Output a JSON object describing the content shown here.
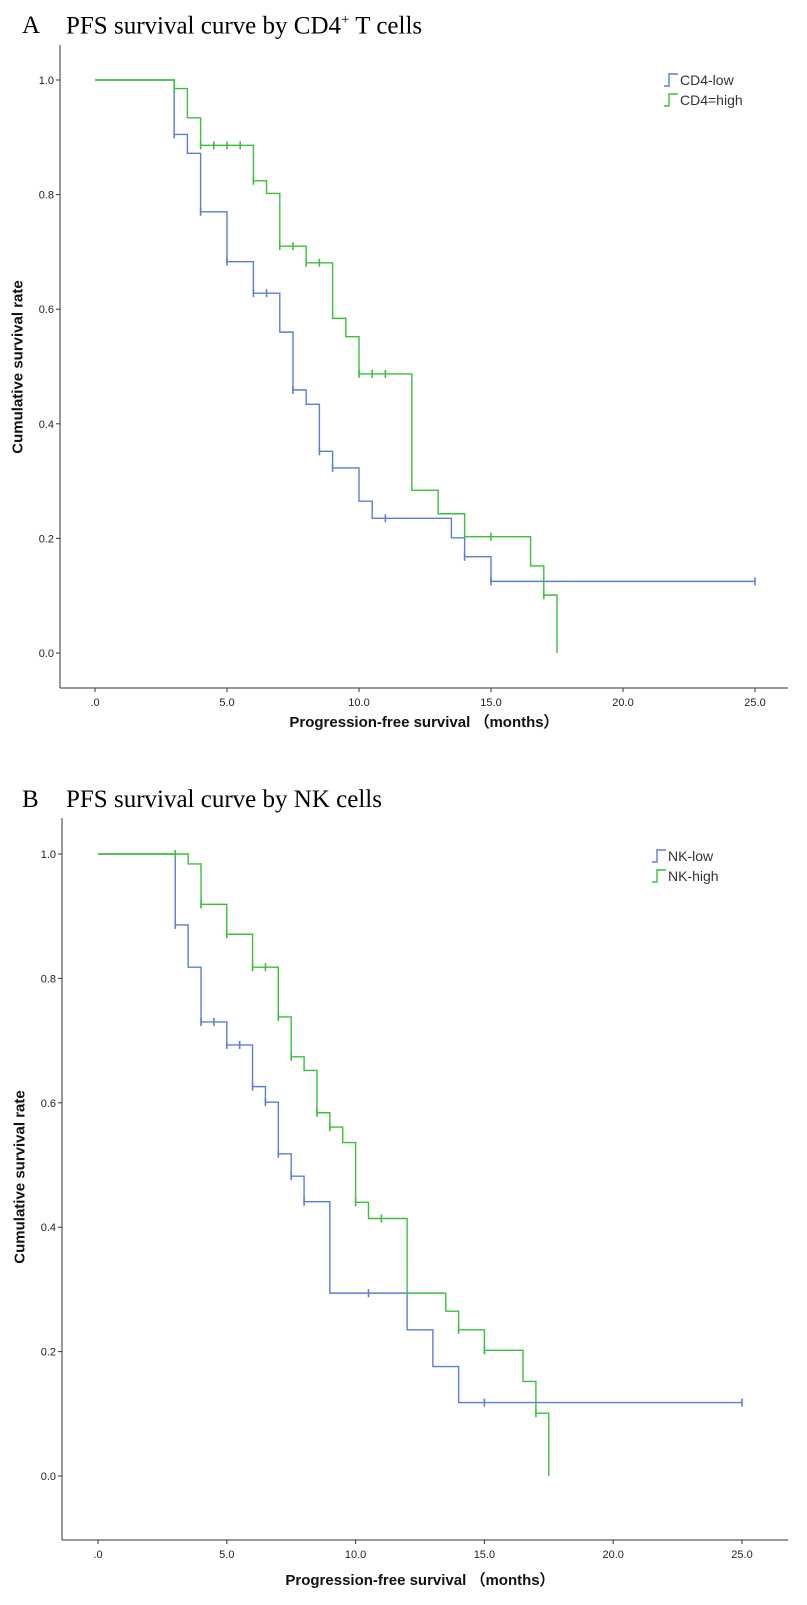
{
  "panels": [
    {
      "letter": "A",
      "title": "PFS survival curve by CD4",
      "title_sup": "+",
      "title_suffix": " T cells"
    },
    {
      "letter": "B",
      "title": "PFS survival curve by NK cells",
      "title_sup": "",
      "title_suffix": ""
    }
  ],
  "chart_data": [
    {
      "type": "line",
      "step": true,
      "title": "PFS survival curve by CD4+ T cells",
      "xlabel": "Progression-free survival （months）",
      "ylabel": "Cumulative survival rate",
      "xlim": [
        0,
        25
      ],
      "ylim": [
        0,
        1
      ],
      "x_ticks": [
        0,
        5,
        10,
        15,
        20,
        25
      ],
      "x_tick_labels": [
        ".0",
        "5.0",
        "10.0",
        "15.0",
        "20.0",
        "25.0"
      ],
      "y_ticks": [
        0,
        0.2,
        0.4,
        0.6,
        0.8,
        1.0
      ],
      "y_tick_labels": [
        "0.0",
        "0.2",
        "0.4",
        "0.6",
        "0.8",
        "1.0"
      ],
      "legend_position": "top-right",
      "series": [
        {
          "name": "CD4-low",
          "color": "#5b7fd6",
          "steps": [
            [
              0,
              1.0
            ],
            [
              3,
              0.905
            ],
            [
              3.5,
              0.872
            ],
            [
              4,
              0.77
            ],
            [
              5,
              0.683
            ],
            [
              6,
              0.628
            ],
            [
              7,
              0.56
            ],
            [
              7.5,
              0.459
            ],
            [
              8,
              0.434
            ],
            [
              8.5,
              0.352
            ],
            [
              9,
              0.323
            ],
            [
              10,
              0.265
            ],
            [
              10.5,
              0.235
            ],
            [
              13.5,
              0.201
            ],
            [
              14,
              0.168
            ],
            [
              15,
              0.125
            ]
          ],
          "end_x": 25,
          "censored": [
            [
              3,
              0.905
            ],
            [
              4,
              0.77
            ],
            [
              5,
              0.683
            ],
            [
              6,
              0.628
            ],
            [
              6.5,
              0.628
            ],
            [
              7.5,
              0.459
            ],
            [
              8.5,
              0.352
            ],
            [
              9,
              0.323
            ],
            [
              11,
              0.235
            ],
            [
              14,
              0.168
            ],
            [
              15,
              0.125
            ],
            [
              25,
              0.125
            ]
          ]
        },
        {
          "name": "CD4=high",
          "color": "#3cbf3c",
          "steps": [
            [
              0,
              1.0
            ],
            [
              3,
              0.985
            ],
            [
              3.5,
              0.934
            ],
            [
              4,
              0.886
            ],
            [
              6,
              0.824
            ],
            [
              6.5,
              0.802
            ],
            [
              7,
              0.71
            ],
            [
              8,
              0.681
            ],
            [
              9,
              0.584
            ],
            [
              9.5,
              0.552
            ],
            [
              10,
              0.487
            ],
            [
              12,
              0.284
            ],
            [
              13,
              0.243
            ],
            [
              14,
              0.203
            ],
            [
              16.5,
              0.152
            ],
            [
              17,
              0.101
            ],
            [
              17.5,
              0.0
            ]
          ],
          "end_x": 17.5,
          "censored": [
            [
              3,
              0.985
            ],
            [
              4,
              0.886
            ],
            [
              4.5,
              0.886
            ],
            [
              5,
              0.886
            ],
            [
              5.5,
              0.886
            ],
            [
              6,
              0.824
            ],
            [
              7,
              0.71
            ],
            [
              7.5,
              0.71
            ],
            [
              8,
              0.681
            ],
            [
              8.5,
              0.681
            ],
            [
              10,
              0.487
            ],
            [
              10.5,
              0.487
            ],
            [
              11,
              0.487
            ],
            [
              15,
              0.203
            ],
            [
              17,
              0.101
            ]
          ]
        }
      ]
    },
    {
      "type": "line",
      "step": true,
      "title": "PFS survival curve by NK cells",
      "xlabel": "Progression-free survival （months）",
      "ylabel": "Cumulative survival rate",
      "xlim": [
        0,
        25
      ],
      "ylim": [
        0,
        1
      ],
      "x_ticks": [
        0,
        5,
        10,
        15,
        20,
        25
      ],
      "x_tick_labels": [
        ".0",
        "5.0",
        "10.0",
        "15.0",
        "20.0",
        "25.0"
      ],
      "y_ticks": [
        0,
        0.2,
        0.4,
        0.6,
        0.8,
        1.0
      ],
      "y_tick_labels": [
        "0.0",
        "0.2",
        "0.4",
        "0.6",
        "0.8",
        "1.0"
      ],
      "legend_position": "top-right",
      "series": [
        {
          "name": "NK-low",
          "color": "#5b7fd6",
          "steps": [
            [
              0,
              1.0
            ],
            [
              3,
              0.886
            ],
            [
              3.5,
              0.818
            ],
            [
              4,
              0.73
            ],
            [
              5,
              0.693
            ],
            [
              6,
              0.626
            ],
            [
              6.5,
              0.601
            ],
            [
              7,
              0.518
            ],
            [
              7.5,
              0.482
            ],
            [
              8,
              0.441
            ],
            [
              9,
              0.294
            ],
            [
              12,
              0.235
            ],
            [
              13,
              0.176
            ],
            [
              14,
              0.118
            ]
          ],
          "end_x": 25,
          "censored": [
            [
              3,
              0.886
            ],
            [
              4,
              0.73
            ],
            [
              4.5,
              0.73
            ],
            [
              5,
              0.693
            ],
            [
              5.5,
              0.693
            ],
            [
              6,
              0.626
            ],
            [
              6.5,
              0.601
            ],
            [
              7,
              0.518
            ],
            [
              7.5,
              0.482
            ],
            [
              8,
              0.441
            ],
            [
              10.5,
              0.294
            ],
            [
              15,
              0.118
            ],
            [
              25,
              0.118
            ]
          ]
        },
        {
          "name": "NK-high",
          "color": "#3cbf3c",
          "steps": [
            [
              0,
              1.0
            ],
            [
              3.5,
              0.984
            ],
            [
              4,
              0.919
            ],
            [
              5,
              0.871
            ],
            [
              6,
              0.818
            ],
            [
              7,
              0.738
            ],
            [
              7.5,
              0.674
            ],
            [
              8,
              0.652
            ],
            [
              8.5,
              0.584
            ],
            [
              9,
              0.561
            ],
            [
              9.5,
              0.536
            ],
            [
              10,
              0.44
            ],
            [
              10.5,
              0.414
            ],
            [
              12,
              0.294
            ],
            [
              13.5,
              0.265
            ],
            [
              14,
              0.235
            ],
            [
              15,
              0.202
            ],
            [
              16.5,
              0.152
            ],
            [
              17,
              0.101
            ],
            [
              17.5,
              0.0
            ]
          ],
          "end_x": 17.5,
          "censored": [
            [
              3,
              1.0
            ],
            [
              4,
              0.919
            ],
            [
              5,
              0.871
            ],
            [
              6,
              0.818
            ],
            [
              6.5,
              0.818
            ],
            [
              7,
              0.738
            ],
            [
              7.5,
              0.674
            ],
            [
              8.5,
              0.584
            ],
            [
              9,
              0.561
            ],
            [
              10,
              0.44
            ],
            [
              11,
              0.414
            ],
            [
              14,
              0.235
            ],
            [
              15,
              0.202
            ],
            [
              17,
              0.101
            ]
          ]
        }
      ]
    }
  ]
}
